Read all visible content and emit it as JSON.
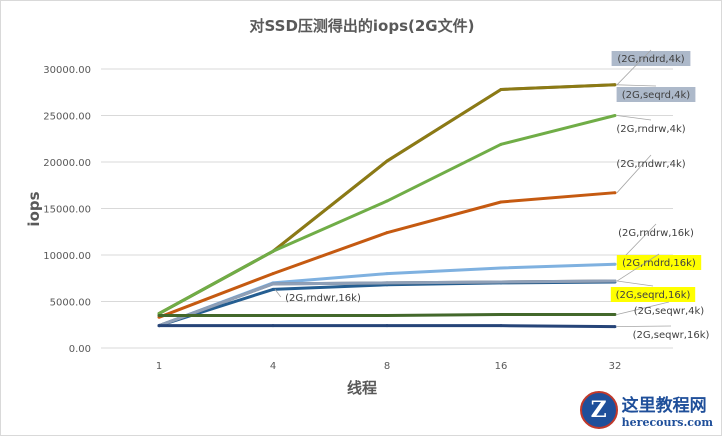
{
  "chart_data": {
    "type": "line",
    "title": "对SSD压测得出的iops(2G文件)",
    "xlabel": "线程",
    "ylabel": "iops",
    "categories": [
      "1",
      "4",
      "8",
      "16",
      "32"
    ],
    "ylim": [
      0,
      30000
    ],
    "yticks": [
      "0.00",
      "5000.00",
      "10000.00",
      "15000.00",
      "20000.00",
      "25000.00",
      "30000.00"
    ],
    "grid": true,
    "legend": "data labels at line ends",
    "series": [
      {
        "name": "(2G,seqrd,4k)",
        "color": "#7f7f7f",
        "values": [
          3700,
          10400,
          20100,
          27800,
          28300
        ],
        "label_bg": "#adb9ca"
      },
      {
        "name": "(2G,rndrd,4k)",
        "color": "#8c7a14",
        "values": [
          3700,
          10400,
          20100,
          27800,
          28300
        ],
        "label_bg": "#adb9ca"
      },
      {
        "name": "(2G,rndrw,4k)",
        "color": "#70ad47",
        "values": [
          3700,
          10400,
          15800,
          21900,
          25000
        ],
        "label_bg": ""
      },
      {
        "name": "(2G,rndwr,4k)",
        "color": "#c55a11",
        "values": [
          3300,
          8000,
          12400,
          15700,
          16700
        ],
        "label_bg": ""
      },
      {
        "name": "(2G,rndrw,16k)",
        "color": "#7fb1e0",
        "values": [
          2400,
          7000,
          8000,
          8600,
          9000
        ],
        "label_bg": ""
      },
      {
        "name": "(2G,rndwr,16k)",
        "color": "#255e91",
        "values": [
          2400,
          6300,
          6800,
          7000,
          7100
        ],
        "label_bg": ""
      },
      {
        "name": "(2G,seqrd,16k)",
        "color": "#636363",
        "values": [
          2400,
          6900,
          7000,
          7100,
          7200
        ],
        "label_bg": "#ffff00"
      },
      {
        "name": "(2G,rndrd,16k)",
        "color": "#8fa0b8",
        "values": [
          2400,
          6900,
          7000,
          7100,
          7200
        ],
        "label_bg": "#ffff00"
      },
      {
        "name": "(2G,seqwr,4k)",
        "color": "#43682b",
        "values": [
          3500,
          3500,
          3500,
          3600,
          3600
        ],
        "label_bg": ""
      },
      {
        "name": "(2G,seqwr,16k)",
        "color": "#264478",
        "values": [
          2400,
          2400,
          2400,
          2400,
          2300
        ],
        "label_bg": ""
      }
    ]
  },
  "watermark": {
    "name": "这里教程网",
    "site": "herecours.com",
    "logo": "Z"
  }
}
